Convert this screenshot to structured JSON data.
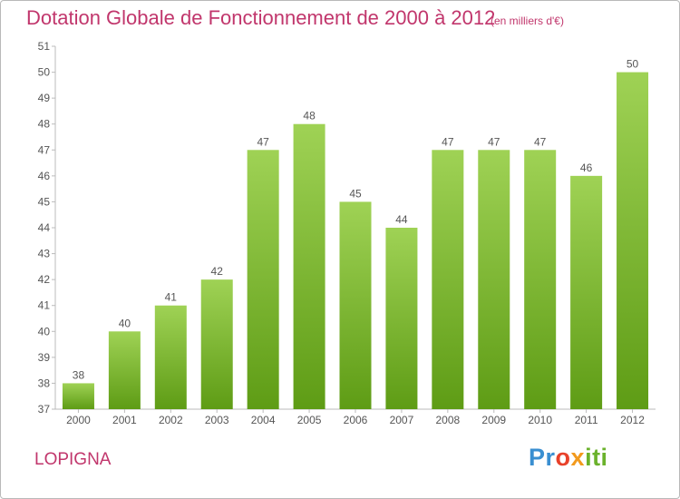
{
  "title": "Dotation Globale de Fonctionnement de 2000 à 2012",
  "subtitle": "(en milliers d'€)",
  "commune": "LOPIGNA",
  "logo_text": "Proxiti",
  "colors": {
    "title": "#c1366c",
    "bar_top": "#9fd255",
    "bar_bottom": "#5e9c15",
    "axis": "#bbbbbb",
    "text": "#555555"
  },
  "chart_data": {
    "type": "bar",
    "categories": [
      "2000",
      "2001",
      "2002",
      "2003",
      "2004",
      "2005",
      "2006",
      "2007",
      "2008",
      "2009",
      "2010",
      "2011",
      "2012"
    ],
    "values": [
      38,
      40,
      41,
      42,
      47,
      48,
      45,
      44,
      47,
      47,
      47,
      46,
      50
    ],
    "ylim": [
      37,
      51
    ],
    "yticks": [
      37,
      38,
      39,
      40,
      41,
      42,
      43,
      44,
      45,
      46,
      47,
      48,
      49,
      50,
      51
    ],
    "grid": false,
    "legend": "none"
  }
}
